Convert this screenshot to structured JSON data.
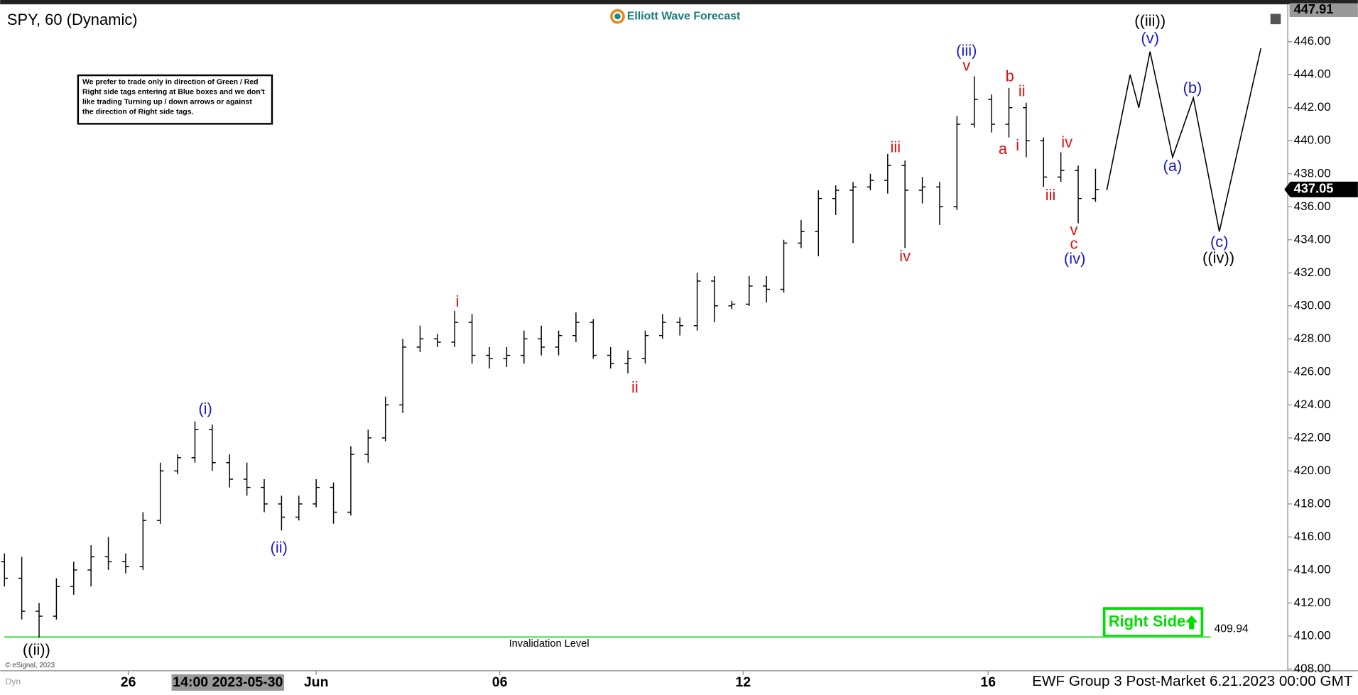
{
  "chart_data": {
    "type": "ohlc",
    "title": "SPY, 60 (Dynamic)",
    "logo": "Elliott Wave Forecast",
    "note": [
      "We prefer to trade only in direction of Green / Red",
      "Right side tags entering at Blue boxes and we don't",
      "like trading Turning up / down arrows or against",
      "the direction of Right side tags."
    ],
    "copyright": "© eSignal, 2023",
    "mode": "Dyn",
    "footer": "EWF Group 3 Post-Market 6.21.2023 00:00 GMT",
    "cursor_time": {
      "value": 12.85,
      "label": "14:00 2023-05-30"
    },
    "color": "#000000",
    "xlim": [
      0,
      74
    ],
    "ylim": [
      408,
      448
    ],
    "xticks": [
      {
        "value": 7.15,
        "label": "26"
      },
      {
        "value": 18,
        "label": "Jun"
      },
      {
        "value": 28.6,
        "label": "06"
      },
      {
        "value": 42.65,
        "label": "12"
      },
      {
        "value": 56.8,
        "label": "16"
      }
    ],
    "yticks": [
      {
        "value": 408,
        "label": "408.00"
      },
      {
        "value": 410,
        "label": "410.00"
      },
      {
        "value": 412,
        "label": "412.00"
      },
      {
        "value": 414,
        "label": "414.00"
      },
      {
        "value": 416,
        "label": "416.00"
      },
      {
        "value": 418,
        "label": "418.00"
      },
      {
        "value": 420,
        "label": "420.00"
      },
      {
        "value": 422,
        "label": "422.00"
      },
      {
        "value": 424,
        "label": "424.00"
      },
      {
        "value": 426,
        "label": "426.00"
      },
      {
        "value": 428,
        "label": "428.00"
      },
      {
        "value": 430,
        "label": "430.00"
      },
      {
        "value": 432,
        "label": "432.00"
      },
      {
        "value": 434,
        "label": "434.00"
      },
      {
        "value": 436,
        "label": "436.00"
      },
      {
        "value": 438,
        "label": "438.00"
      },
      {
        "value": 440,
        "label": "440.00"
      },
      {
        "value": 442,
        "label": "442.00"
      },
      {
        "value": 444,
        "label": "444.00"
      },
      {
        "value": 446,
        "label": "446.00"
      }
    ],
    "high_tag": 447.91,
    "last_price": 437.05,
    "x": [
      0,
      1,
      2,
      3,
      4,
      5,
      6,
      7,
      8,
      9,
      10,
      11,
      12,
      13,
      14,
      15,
      16,
      17,
      18,
      19,
      20,
      21,
      22,
      23,
      24,
      25,
      26,
      27,
      28,
      29,
      30,
      31,
      32,
      33,
      34,
      35,
      36,
      37,
      38,
      39,
      40,
      41,
      42,
      43,
      44,
      45,
      46,
      47,
      48,
      49,
      50,
      51,
      52,
      53,
      54,
      55,
      56,
      57,
      58,
      59,
      60,
      61,
      62,
      63
    ],
    "ohlc": [
      [
        414.5,
        415,
        413,
        413.5
      ],
      [
        413.5,
        414.8,
        411,
        411.5
      ],
      [
        411.5,
        412,
        409.9,
        411.2
      ],
      [
        411.2,
        413.5,
        411,
        413
      ],
      [
        413,
        414.5,
        412.5,
        414
      ],
      [
        414,
        415.5,
        413,
        414.8
      ],
      [
        414.8,
        416,
        414,
        414.5
      ],
      [
        414.5,
        415,
        413.8,
        414.2
      ],
      [
        414.2,
        417.5,
        414,
        417
      ],
      [
        417,
        420.5,
        416.8,
        420
      ],
      [
        420,
        421,
        419.8,
        420.8
      ],
      [
        420.8,
        423,
        420.5,
        422.5
      ],
      [
        422.5,
        422.8,
        420,
        420.5
      ],
      [
        420.5,
        421,
        419,
        419.5
      ],
      [
        419.5,
        420.5,
        418.5,
        419
      ],
      [
        419,
        419.5,
        417.5,
        418
      ],
      [
        418,
        418.5,
        416.4,
        417.2
      ],
      [
        417.2,
        418.5,
        417,
        418
      ],
      [
        418,
        419.5,
        417.8,
        419
      ],
      [
        419,
        419.3,
        416.8,
        417.5
      ],
      [
        417.5,
        421.5,
        417.3,
        421
      ],
      [
        421,
        422.5,
        420.5,
        422
      ],
      [
        422,
        424.5,
        421.8,
        424
      ],
      [
        424,
        428,
        423.5,
        427.5
      ],
      [
        427.5,
        428.8,
        427.2,
        428
      ],
      [
        428,
        428.3,
        427.5,
        427.8
      ],
      [
        427.8,
        429.7,
        427.5,
        429
      ],
      [
        429,
        429.5,
        426.5,
        427
      ],
      [
        427,
        427.5,
        426.2,
        426.8
      ],
      [
        426.8,
        427.5,
        426.3,
        427
      ],
      [
        427,
        428.5,
        426.5,
        428
      ],
      [
        428,
        428.8,
        427,
        427.5
      ],
      [
        427.5,
        428.5,
        427,
        428.2
      ],
      [
        428.2,
        429.6,
        427.8,
        429
      ],
      [
        429,
        429.2,
        426.8,
        427
      ],
      [
        427,
        427.5,
        426.2,
        426.5
      ],
      [
        426.5,
        427.3,
        425.9,
        426.8
      ],
      [
        426.8,
        428.5,
        426.5,
        428.2
      ],
      [
        428.2,
        429.5,
        428,
        429
      ],
      [
        429,
        429.3,
        428.2,
        428.8
      ],
      [
        428.8,
        432,
        428.5,
        431.5
      ],
      [
        431.5,
        431.8,
        429,
        430
      ],
      [
        430,
        430.3,
        429.8,
        430.1
      ],
      [
        430.1,
        431.8,
        430,
        431.2
      ],
      [
        431.2,
        431.8,
        430.2,
        431
      ],
      [
        431,
        434,
        430.8,
        433.8
      ],
      [
        433.8,
        435.2,
        433.5,
        434.5
      ],
      [
        434.5,
        437,
        433,
        436.5
      ],
      [
        436.5,
        437.3,
        435.5,
        437
      ],
      [
        437,
        437.5,
        433.8,
        437.2
      ],
      [
        437.2,
        438,
        437,
        437.6
      ],
      [
        437.6,
        439.2,
        436.8,
        438.5
      ],
      [
        438.5,
        438.8,
        433.5,
        437
      ],
      [
        437,
        437.8,
        436.2,
        437.2
      ],
      [
        437.2,
        437.5,
        434.9,
        436
      ],
      [
        436,
        441.5,
        435.8,
        441
      ],
      [
        441,
        443.9,
        440.8,
        442.5
      ],
      [
        442.5,
        442.8,
        440.5,
        441
      ],
      [
        441,
        443.2,
        440.2,
        442
      ],
      [
        442,
        442.3,
        439,
        440
      ],
      [
        440,
        440.2,
        437.2,
        437.8
      ],
      [
        437.8,
        439.3,
        437.5,
        438.2
      ],
      [
        438.2,
        438.5,
        435,
        436.5
      ],
      [
        436.5,
        438.3,
        436.3,
        437.05
      ]
    ],
    "projection": {
      "color": "#000000",
      "x": [
        63.65,
        65,
        65.5,
        66.15,
        67.45,
        68.65,
        70.15,
        72.55
      ],
      "y": [
        437,
        444,
        442,
        445.4,
        439,
        442.6,
        434.5,
        445.6
      ]
    },
    "invalidation": {
      "value": 409.94,
      "label": "Invalidation Level",
      "color": "#33dd33"
    },
    "right_side": {
      "label": "Right Side",
      "color": "#00dd00"
    },
    "annotations": [
      {
        "text": "((ii))",
        "x": 1.85,
        "y": 409.1,
        "color": "#000000"
      },
      {
        "text": "(i)",
        "x": 11.6,
        "y": 423.7,
        "color": "#1a1acc"
      },
      {
        "text": "(ii)",
        "x": 15.85,
        "y": 415.3,
        "color": "#1a1acc"
      },
      {
        "text": "i",
        "x": 26.15,
        "y": 430.2,
        "color": "#dd1111"
      },
      {
        "text": "ii",
        "x": 36.4,
        "y": 425.0,
        "color": "#dd1111"
      },
      {
        "text": "iii",
        "x": 51.45,
        "y": 439.55,
        "color": "#dd1111"
      },
      {
        "text": "iv",
        "x": 52,
        "y": 432.95,
        "color": "#dd1111"
      },
      {
        "text": "(iii)",
        "x": 55.55,
        "y": 445.4,
        "color": "#1a1acc"
      },
      {
        "text": "v",
        "x": 55.55,
        "y": 444.5,
        "color": "#dd1111"
      },
      {
        "text": "b",
        "x": 58.05,
        "y": 443.85,
        "color": "#dd1111"
      },
      {
        "text": "ii",
        "x": 58.75,
        "y": 442.95,
        "color": "#dd1111"
      },
      {
        "text": "a",
        "x": 57.65,
        "y": 439.45,
        "color": "#dd1111"
      },
      {
        "text": "i",
        "x": 58.5,
        "y": 439.65,
        "color": "#dd1111"
      },
      {
        "text": "iv",
        "x": 61.35,
        "y": 439.85,
        "color": "#dd1111"
      },
      {
        "text": "iii",
        "x": 60.4,
        "y": 436.65,
        "color": "#dd1111"
      },
      {
        "text": "v",
        "x": 61.75,
        "y": 434.55,
        "color": "#dd1111"
      },
      {
        "text": "c",
        "x": 61.75,
        "y": 433.7,
        "color": "#dd1111"
      },
      {
        "text": "(iv)",
        "x": 61.8,
        "y": 432.8,
        "color": "#1a1acc"
      },
      {
        "text": "((iii))",
        "x": 66.15,
        "y": 447.2,
        "color": "#000000"
      },
      {
        "text": "(v)",
        "x": 66.15,
        "y": 446.15,
        "color": "#1a1acc"
      },
      {
        "text": "(a)",
        "x": 67.45,
        "y": 438.4,
        "color": "#1a1acc"
      },
      {
        "text": "(b)",
        "x": 68.6,
        "y": 443.15,
        "color": "#1a1acc"
      },
      {
        "text": "(c)",
        "x": 70.15,
        "y": 433.8,
        "color": "#1a1acc"
      },
      {
        "text": "((iv))",
        "x": 70.1,
        "y": 432.85,
        "color": "#000000"
      }
    ]
  }
}
